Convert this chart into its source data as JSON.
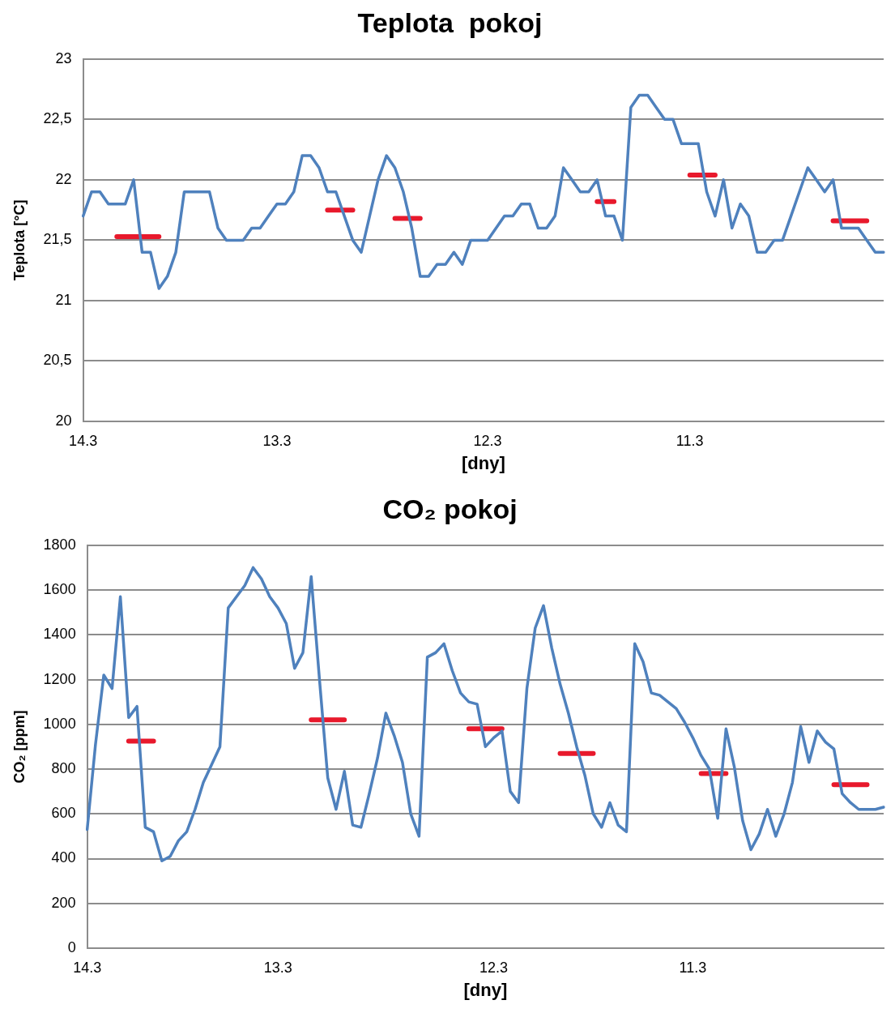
{
  "chart_data": [
    {
      "type": "line",
      "title": "Teplota  pokoj",
      "xlabel": "[dny]",
      "ylabel": "Teplota [°C]",
      "categories": [
        "14.3",
        null,
        null,
        null,
        null,
        null,
        null,
        null,
        null,
        null,
        null,
        null,
        null,
        null,
        null,
        null,
        null,
        null,
        null,
        null,
        null,
        null,
        null,
        "13.3",
        null,
        null,
        null,
        null,
        null,
        null,
        null,
        null,
        null,
        null,
        null,
        null,
        null,
        null,
        null,
        null,
        null,
        null,
        null,
        null,
        null,
        null,
        null,
        null,
        "12.3",
        null,
        null,
        null,
        null,
        null,
        null,
        null,
        null,
        null,
        null,
        null,
        null,
        null,
        null,
        null,
        null,
        null,
        null,
        null,
        null,
        null,
        null,
        null,
        "11.3",
        null,
        null,
        null,
        null,
        null,
        null,
        null,
        null,
        null,
        null,
        null,
        null,
        null,
        null,
        null,
        null,
        null,
        null,
        null,
        null,
        null,
        null,
        null
      ],
      "series": [
        {
          "color": "#4f81bd",
          "values": [
            21.7,
            21.9,
            21.9,
            21.8,
            21.8,
            21.8,
            22.0,
            21.4,
            21.4,
            21.1,
            21.2,
            21.4,
            21.9,
            21.9,
            21.9,
            21.9,
            21.6,
            21.5,
            21.5,
            21.5,
            21.6,
            21.6,
            21.7,
            21.8,
            21.8,
            21.9,
            22.2,
            22.2,
            22.1,
            21.9,
            21.9,
            21.7,
            21.5,
            21.4,
            21.7,
            22.0,
            22.2,
            22.1,
            21.9,
            21.6,
            21.2,
            21.2,
            21.3,
            21.3,
            21.4,
            21.3,
            21.5,
            21.5,
            21.5,
            21.6,
            21.7,
            21.7,
            21.8,
            21.8,
            21.6,
            21.6,
            21.7,
            22.1,
            22.0,
            21.9,
            21.9,
            22.0,
            21.7,
            21.7,
            21.5,
            22.6,
            22.7,
            22.7,
            22.6,
            22.5,
            22.5,
            22.3,
            22.3,
            22.3,
            21.9,
            21.7,
            22.0,
            21.6,
            21.8,
            21.7,
            21.4,
            21.4,
            21.5,
            21.5,
            21.7,
            21.9,
            22.1,
            22.0,
            21.9,
            22.0,
            21.6,
            21.6,
            21.6,
            21.5,
            21.4,
            21.4
          ]
        },
        {
          "color": "#e8192c",
          "values": [
            null,
            null,
            null,
            null,
            21.53,
            21.53,
            21.53,
            21.53,
            21.53,
            21.53,
            null,
            null,
            null,
            null,
            null,
            null,
            null,
            null,
            null,
            null,
            null,
            null,
            null,
            null,
            null,
            null,
            null,
            null,
            null,
            21.75,
            21.75,
            21.75,
            21.75,
            null,
            null,
            null,
            null,
            21.68,
            21.68,
            21.68,
            21.68,
            null,
            null,
            null,
            null,
            null,
            null,
            null,
            null,
            null,
            null,
            null,
            null,
            null,
            null,
            null,
            null,
            null,
            null,
            null,
            null,
            21.82,
            21.82,
            21.82,
            null,
            null,
            null,
            null,
            null,
            null,
            null,
            null,
            22.04,
            22.04,
            22.04,
            22.04,
            null,
            null,
            null,
            null,
            null,
            null,
            null,
            null,
            null,
            null,
            null,
            null,
            null,
            21.66,
            21.66,
            21.66,
            21.66,
            21.66,
            null,
            null
          ]
        }
      ],
      "ylim": [
        20,
        23
      ],
      "yticks": [
        20,
        {
          "value": 20.5,
          "label": "20,5"
        },
        21,
        {
          "value": 21.5,
          "label": "21,5"
        },
        22,
        {
          "value": 22.5,
          "label": "22,5"
        },
        23
      ],
      "grid": "y",
      "legend": false,
      "marker": "none",
      "line_style": "solid"
    },
    {
      "type": "line",
      "title": "CO₂ pokoj",
      "xlabel": "[dny]",
      "ylabel": "CO₂ [ppm]",
      "categories": [
        "14.3",
        null,
        null,
        null,
        null,
        null,
        null,
        null,
        null,
        null,
        null,
        null,
        null,
        null,
        null,
        null,
        null,
        null,
        null,
        null,
        null,
        null,
        null,
        "13.3",
        null,
        null,
        null,
        null,
        null,
        null,
        null,
        null,
        null,
        null,
        null,
        null,
        null,
        null,
        null,
        null,
        null,
        null,
        null,
        null,
        null,
        null,
        null,
        null,
        null,
        "12.3",
        null,
        null,
        null,
        null,
        null,
        null,
        null,
        null,
        null,
        null,
        null,
        null,
        null,
        null,
        null,
        null,
        null,
        null,
        null,
        null,
        null,
        null,
        null,
        "11.3",
        null,
        null,
        null,
        null,
        null,
        null,
        null,
        null,
        null,
        null,
        null,
        null,
        null,
        null,
        null,
        null,
        null,
        null,
        null,
        null,
        null,
        null,
        null
      ],
      "series": [
        {
          "color": "#4f81bd",
          "values": [
            530,
            910,
            1220,
            1160,
            1570,
            1030,
            1080,
            540,
            520,
            390,
            410,
            480,
            520,
            620,
            740,
            820,
            900,
            1520,
            1570,
            1620,
            1700,
            1650,
            1570,
            1520,
            1450,
            1250,
            1320,
            1660,
            1200,
            760,
            620,
            790,
            550,
            540,
            690,
            850,
            1050,
            950,
            830,
            600,
            500,
            1300,
            1320,
            1360,
            1240,
            1140,
            1100,
            1090,
            900,
            940,
            970,
            700,
            650,
            1160,
            1430,
            1530,
            1340,
            1180,
            1050,
            900,
            770,
            600,
            540,
            650,
            550,
            520,
            1360,
            1280,
            1140,
            1130,
            1100,
            1070,
            1010,
            940,
            860,
            800,
            580,
            980,
            810,
            570,
            440,
            510,
            620,
            500,
            600,
            740,
            990,
            830,
            970,
            920,
            890,
            690,
            650,
            620,
            620,
            620,
            630
          ]
        },
        {
          "color": "#e8192c",
          "values": [
            null,
            null,
            null,
            null,
            null,
            925,
            925,
            925,
            925,
            null,
            null,
            null,
            null,
            null,
            null,
            null,
            null,
            null,
            null,
            null,
            null,
            null,
            null,
            null,
            null,
            null,
            null,
            1020,
            1020,
            1020,
            1020,
            1020,
            null,
            null,
            null,
            null,
            null,
            null,
            null,
            null,
            null,
            null,
            null,
            null,
            null,
            null,
            980,
            980,
            980,
            980,
            980,
            null,
            null,
            null,
            null,
            null,
            null,
            870,
            870,
            870,
            870,
            870,
            null,
            null,
            null,
            null,
            null,
            null,
            null,
            null,
            null,
            null,
            null,
            null,
            780,
            780,
            780,
            780,
            null,
            null,
            null,
            null,
            null,
            null,
            null,
            null,
            null,
            null,
            null,
            null,
            730,
            730,
            730,
            730,
            730,
            null,
            null
          ]
        }
      ],
      "ylim": [
        0,
        1800
      ],
      "yticks": [
        0,
        200,
        400,
        600,
        800,
        1000,
        1200,
        1400,
        1600,
        1800
      ],
      "grid": "y",
      "legend": false,
      "marker": "none",
      "line_style": "solid"
    }
  ]
}
